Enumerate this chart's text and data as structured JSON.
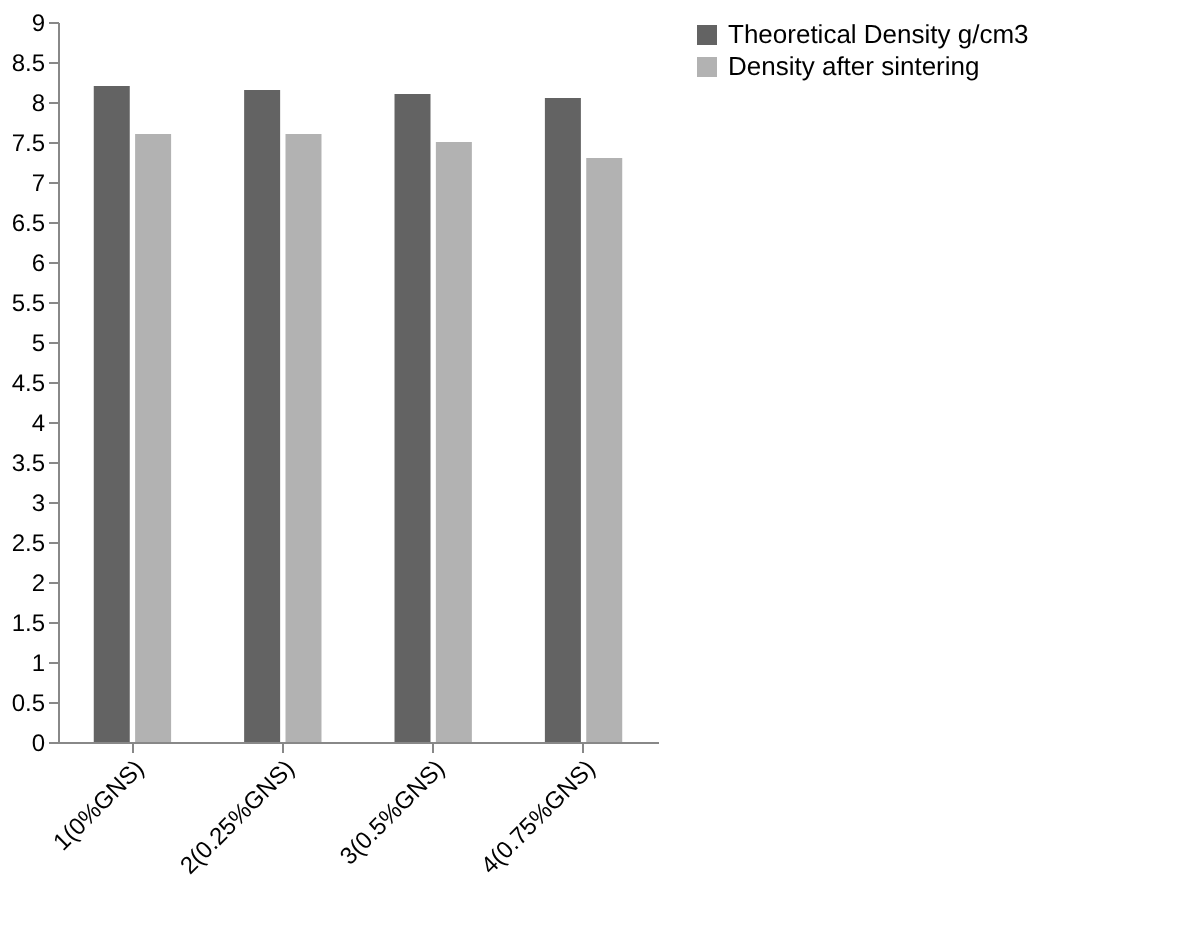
{
  "chart_data": {
    "type": "bar",
    "categories": [
      "1(0%GNS)",
      "2(0.25%GNS)",
      "3(0.5%GNS)",
      "4(0.75%GNS)"
    ],
    "series": [
      {
        "name": "Theoretical Density g/cm3",
        "color": "#636363",
        "values": [
          8.2,
          8.15,
          8.1,
          8.05
        ]
      },
      {
        "name": "Density after sintering",
        "color": "#b2b2b2",
        "values": [
          7.6,
          7.6,
          7.5,
          7.3
        ]
      }
    ],
    "ylim": [
      0,
      9
    ],
    "yticks": [
      0,
      0.5,
      1,
      1.5,
      2,
      2.5,
      3,
      3.5,
      4,
      4.5,
      5,
      5.5,
      6,
      6.5,
      7,
      7.5,
      8,
      8.5,
      9
    ],
    "grid": false,
    "legend": "right"
  }
}
